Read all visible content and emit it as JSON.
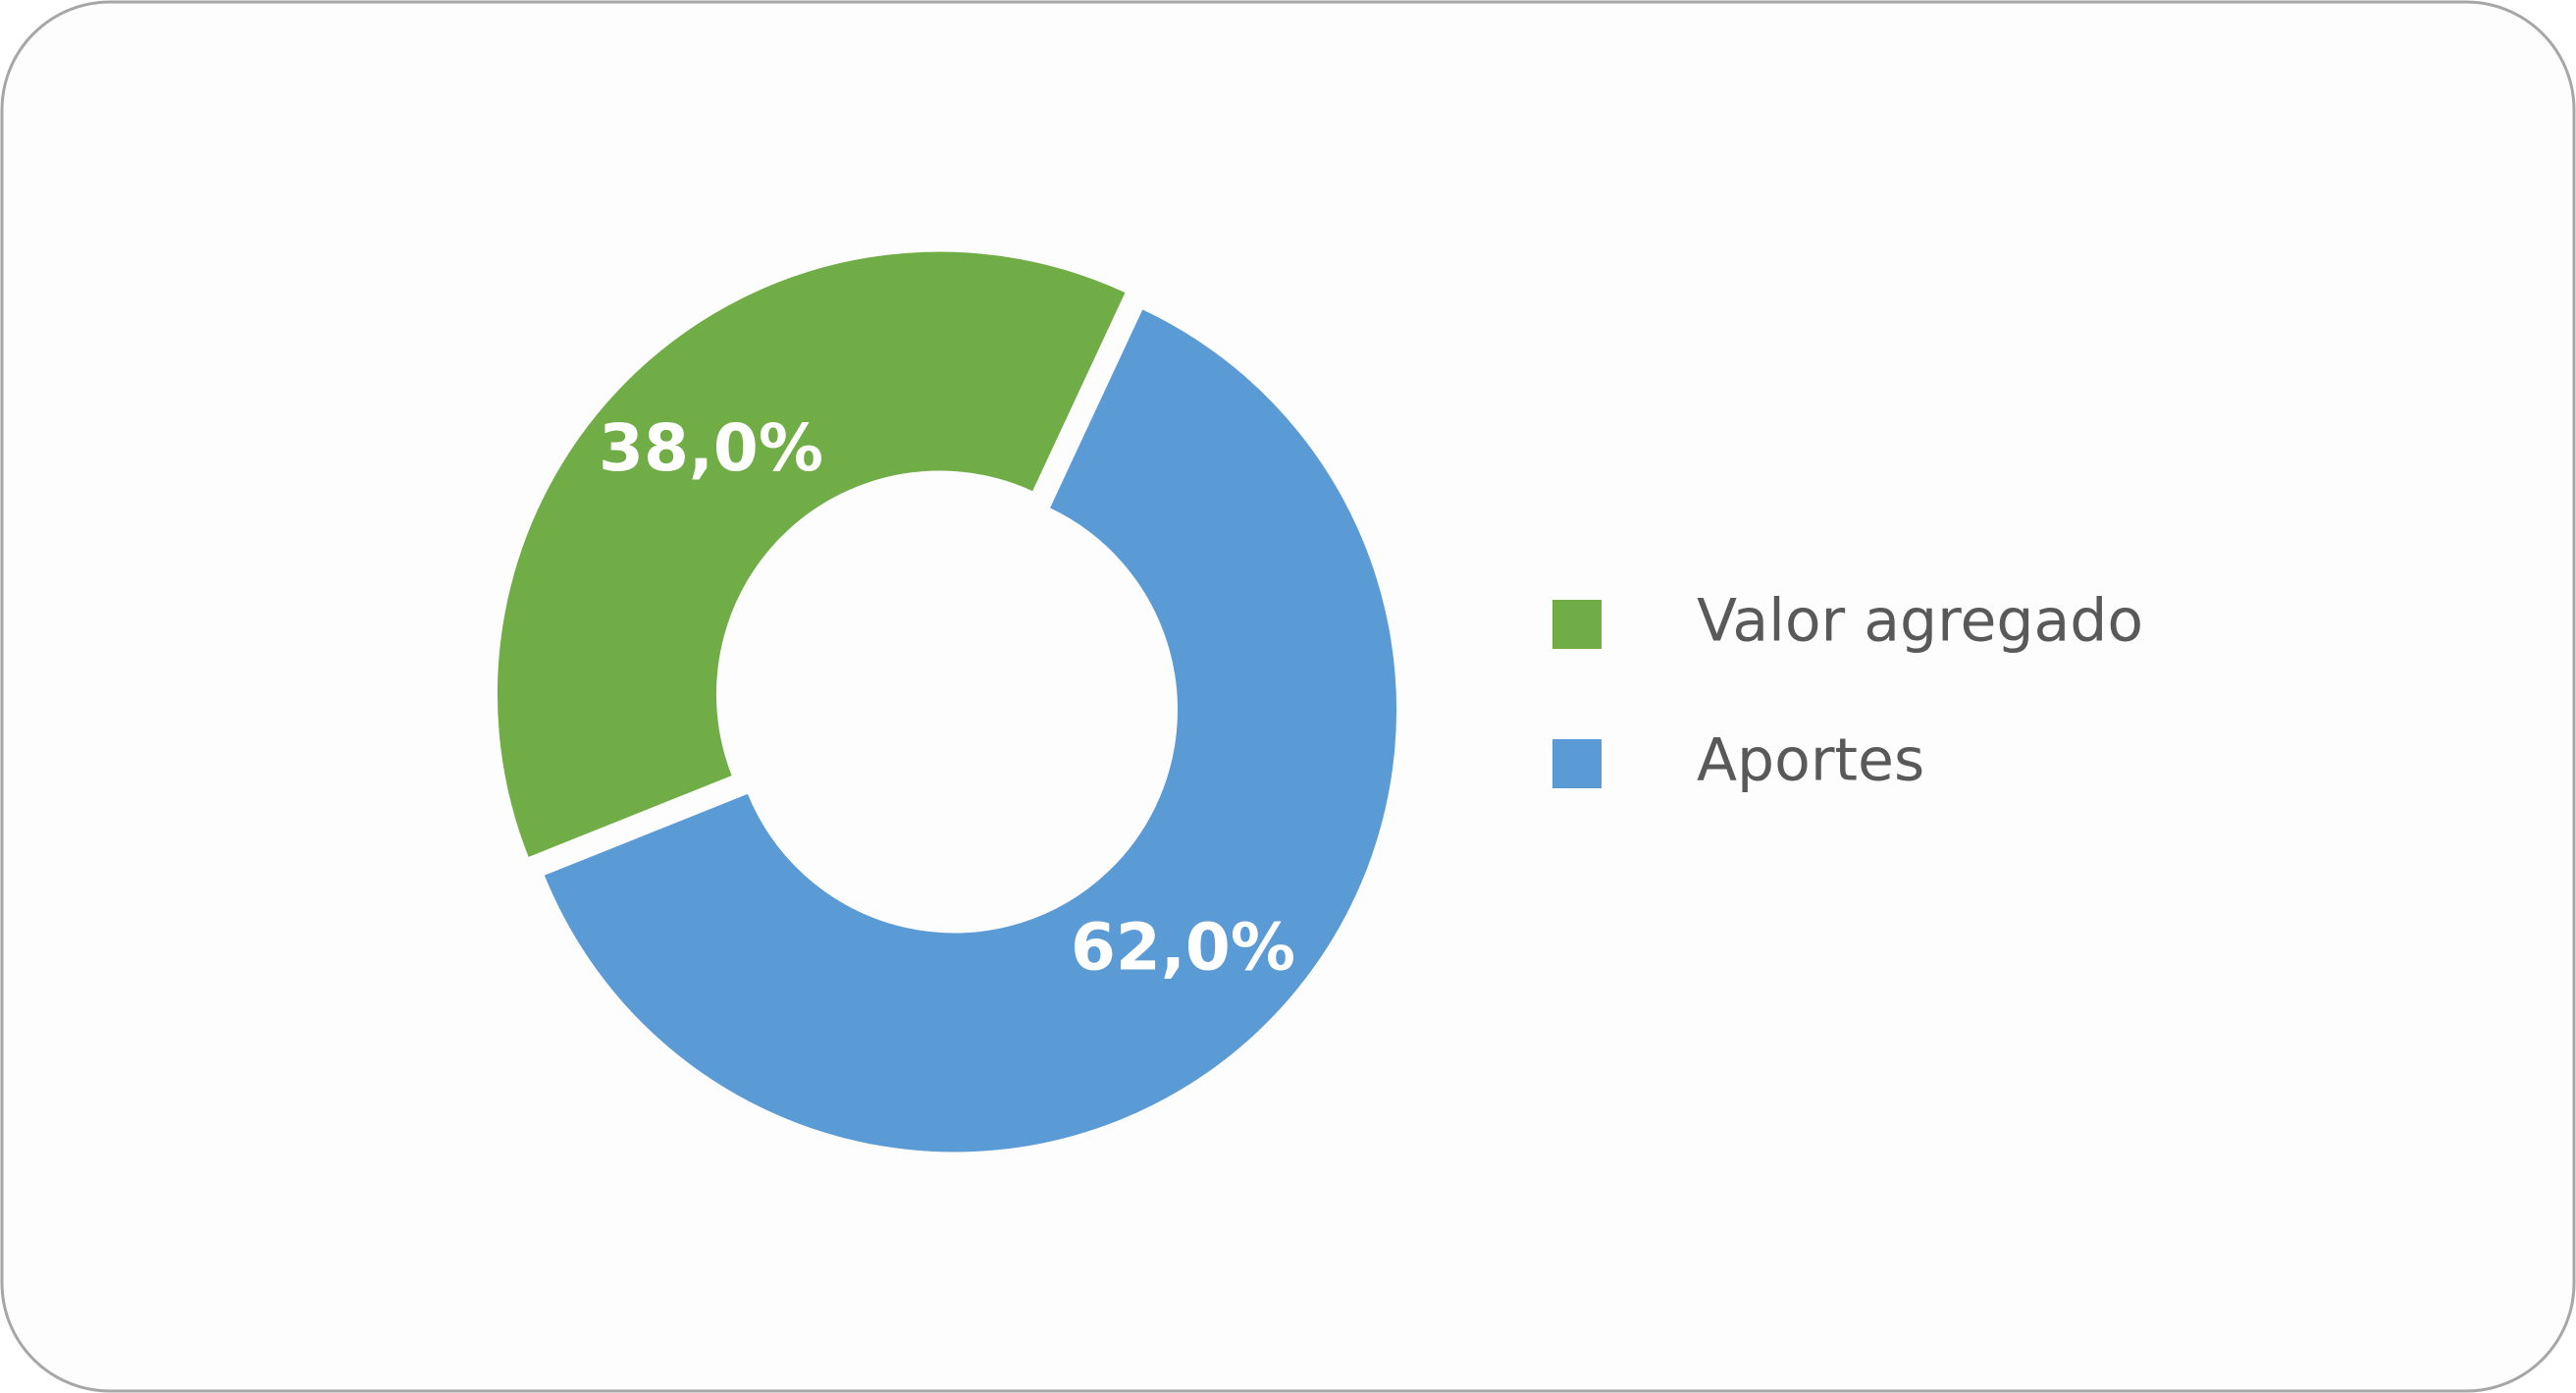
{
  "chart_data": {
    "type": "pie",
    "donut": true,
    "categories": [
      "Valor agregado",
      "Aportes"
    ],
    "values": [
      38.0,
      62.0
    ],
    "value_labels": [
      "38,0%",
      "62,0%"
    ],
    "colors": [
      "#70ad47",
      "#5b9bd5"
    ],
    "legend": "right"
  }
}
